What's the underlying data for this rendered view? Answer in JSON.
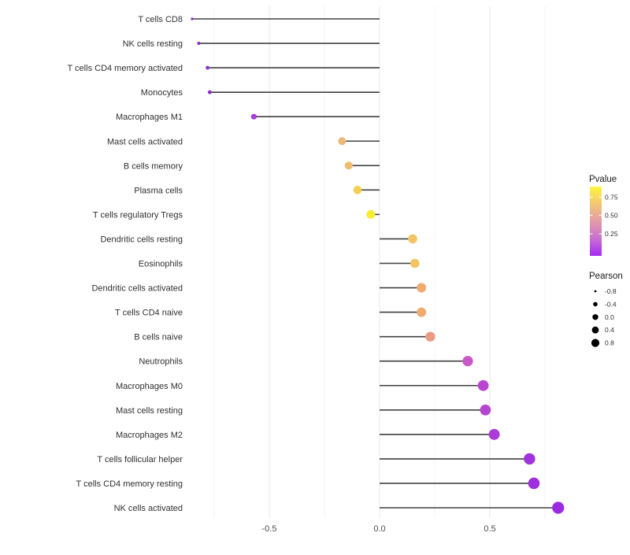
{
  "chart_data": {
    "type": "lollipop",
    "title": "",
    "xlabel": "",
    "ylabel": "",
    "x_ticks": [
      "-0.5",
      "0.0",
      "0.5"
    ],
    "x_tick_values": [
      -0.5,
      0.0,
      0.5
    ],
    "xlim": [
      -0.875,
      0.875
    ],
    "grid": {
      "major": [
        -0.5,
        0.0,
        0.5
      ],
      "minor": [
        -0.75,
        -0.25,
        0.25,
        0.75
      ],
      "horizontal": false
    },
    "rows": [
      {
        "label": "T cells CD8",
        "pearson": -0.85,
        "pvalue_approx": 0.02,
        "color": "#7E22C6",
        "radius": 1.6
      },
      {
        "label": "NK cells resting",
        "pearson": -0.82,
        "pvalue_approx": 0.03,
        "color": "#8527CC",
        "radius": 2.0
      },
      {
        "label": "T cells CD4 memory activated",
        "pearson": -0.78,
        "pvalue_approx": 0.04,
        "color": "#8C2BD1",
        "radius": 2.4
      },
      {
        "label": "Monocytes",
        "pearson": -0.77,
        "pvalue_approx": 0.05,
        "color": "#8F2DD3",
        "radius": 2.5
      },
      {
        "label": "Macrophages M1",
        "pearson": -0.57,
        "pvalue_approx": 0.1,
        "color": "#A93BDB",
        "radius": 3.6
      },
      {
        "label": "Mast cells activated",
        "pearson": -0.17,
        "pvalue_approx": 0.6,
        "color": "#EDB878",
        "radius": 5.0
      },
      {
        "label": "B cells memory",
        "pearson": -0.14,
        "pvalue_approx": 0.62,
        "color": "#EFBC72",
        "radius": 5.1
      },
      {
        "label": "Plasma cells",
        "pearson": -0.1,
        "pvalue_approx": 0.7,
        "color": "#F3D055",
        "radius": 5.3
      },
      {
        "label": "T cells regulatory  Tregs",
        "pearson": -0.04,
        "pvalue_approx": 0.85,
        "color": "#F8EC2D",
        "radius": 5.5
      },
      {
        "label": "Dendritic cells resting",
        "pearson": 0.15,
        "pvalue_approx": 0.63,
        "color": "#F2C464",
        "radius": 5.8
      },
      {
        "label": "Eosinophils",
        "pearson": 0.16,
        "pvalue_approx": 0.63,
        "color": "#F2C464",
        "radius": 5.8
      },
      {
        "label": "Dendritic cells activated",
        "pearson": 0.19,
        "pvalue_approx": 0.55,
        "color": "#EFAC71",
        "radius": 6.0
      },
      {
        "label": "T cells CD4 naive",
        "pearson": 0.19,
        "pvalue_approx": 0.55,
        "color": "#EFAC71",
        "radius": 6.0
      },
      {
        "label": "B cells naive",
        "pearson": 0.23,
        "pvalue_approx": 0.45,
        "color": "#EB9A84",
        "radius": 6.2
      },
      {
        "label": "Neutrophils",
        "pearson": 0.4,
        "pvalue_approx": 0.22,
        "color": "#C957C6",
        "radius": 6.6
      },
      {
        "label": "Macrophages M0",
        "pearson": 0.47,
        "pvalue_approx": 0.17,
        "color": "#B847CF",
        "radius": 6.9
      },
      {
        "label": "Mast cells resting",
        "pearson": 0.48,
        "pvalue_approx": 0.17,
        "color": "#B646D0",
        "radius": 6.9
      },
      {
        "label": "Macrophages M2",
        "pearson": 0.52,
        "pvalue_approx": 0.12,
        "color": "#AC3CD7",
        "radius": 7.0
      },
      {
        "label": "T cells follicular helper",
        "pearson": 0.68,
        "pvalue_approx": 0.08,
        "color": "#A133DC",
        "radius": 7.2
      },
      {
        "label": "T cells CD4 memory resting",
        "pearson": 0.7,
        "pvalue_approx": 0.07,
        "color": "#9E30DE",
        "radius": 7.3
      },
      {
        "label": "NK cells activated",
        "pearson": 0.81,
        "pvalue_approx": 0.04,
        "color": "#9A2BE1",
        "radius": 7.6
      }
    ],
    "legend": {
      "pvalue": {
        "title": "Pvalue",
        "ticks": [
          "0.75",
          "0.50",
          "0.25"
        ],
        "gradient_top_to_bottom": [
          "#FCF63F",
          "#F3C773",
          "#E39BA8",
          "#C96FD0",
          "#A52BF2"
        ]
      },
      "pearson": {
        "title": "Pearson",
        "items": [
          {
            "label": "-0.8",
            "radius": 1.4
          },
          {
            "label": "-0.4",
            "radius": 2.8
          },
          {
            "label": "0.0",
            "radius": 3.7
          },
          {
            "label": "0.4",
            "radius": 4.4
          },
          {
            "label": "0.8",
            "radius": 5.1
          }
        ]
      }
    },
    "colors": {
      "background": "#FFFFFF",
      "stem": "#404040",
      "grid_major": "#E8E8E8",
      "grid_minor": "#F3F3F3",
      "axis_text": "#4D4D4D",
      "label_text": "#303030",
      "legend_dot": "#000000"
    }
  }
}
